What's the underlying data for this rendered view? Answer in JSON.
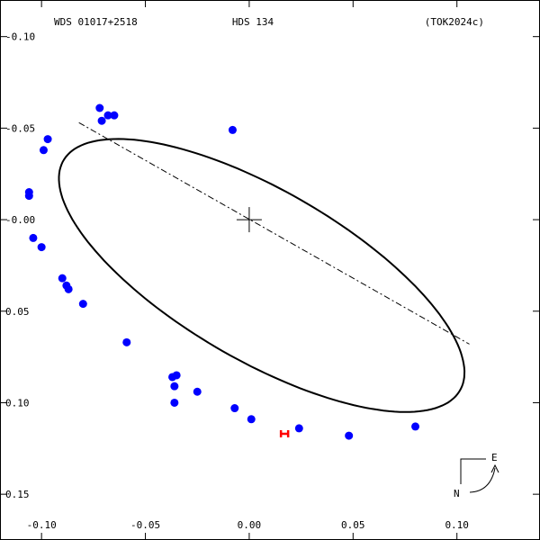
{
  "header": {
    "left": "WDS 01017+2518",
    "center": "HDS 134",
    "right": "(TOK2024c)"
  },
  "compass": {
    "east": "E",
    "north": "N"
  },
  "colors": {
    "frame": "#000000",
    "points": "#0000ff",
    "speckle_marker": "#ff0000",
    "orbit": "#000000"
  },
  "chart_data": {
    "type": "scatter",
    "xlim": [
      -0.12,
      0.14
    ],
    "ylim": [
      0.12,
      -0.175
    ],
    "x_ticks": [
      -0.1,
      -0.05,
      0.0,
      0.05,
      0.1
    ],
    "x_tick_labels": [
      "-0.10",
      "-0.05",
      "0.00",
      "0.05",
      "0.10"
    ],
    "y_ticks": [
      0.1,
      0.05,
      0.0,
      -0.05,
      -0.1,
      -0.15
    ],
    "y_tick_labels": [
      "-0.10",
      "-0.05",
      "-0.00",
      "0.05",
      "0.10",
      "0.15"
    ],
    "primary_star": [
      0.0,
      0.0
    ],
    "orbit_ellipse": {
      "center": [
        0.006,
        -0.0305
      ],
      "semi_major": 0.1144,
      "semi_minor": 0.0448,
      "rotation_deg": 34.5
    },
    "line_of_nodes": [
      [
        -0.082,
        0.053
      ],
      [
        0.106,
        -0.068
      ]
    ],
    "observations": [
      {
        "x": -0.072,
        "y": 0.061
      },
      {
        "x": -0.071,
        "y": 0.054
      },
      {
        "x": -0.068,
        "y": 0.057
      },
      {
        "x": -0.065,
        "y": 0.057
      },
      {
        "x": -0.097,
        "y": 0.044
      },
      {
        "x": -0.099,
        "y": 0.038
      },
      {
        "x": -0.106,
        "y": 0.015
      },
      {
        "x": -0.106,
        "y": 0.013
      },
      {
        "x": -0.104,
        "y": -0.01
      },
      {
        "x": -0.1,
        "y": -0.015
      },
      {
        "x": -0.09,
        "y": -0.032
      },
      {
        "x": -0.088,
        "y": -0.036
      },
      {
        "x": -0.087,
        "y": -0.038
      },
      {
        "x": -0.08,
        "y": -0.046
      },
      {
        "x": -0.059,
        "y": -0.067
      },
      {
        "x": -0.035,
        "y": -0.085
      },
      {
        "x": -0.037,
        "y": -0.086
      },
      {
        "x": -0.036,
        "y": -0.091
      },
      {
        "x": -0.036,
        "y": -0.1
      },
      {
        "x": -0.025,
        "y": -0.094
      },
      {
        "x": -0.007,
        "y": -0.103
      },
      {
        "x": 0.001,
        "y": -0.109
      },
      {
        "x": -0.008,
        "y": 0.049
      },
      {
        "x": 0.024,
        "y": -0.114
      },
      {
        "x": 0.048,
        "y": -0.118
      },
      {
        "x": 0.08,
        "y": -0.113
      }
    ],
    "speckle_measurements": [
      {
        "x": 0.017,
        "y": -0.117
      }
    ]
  }
}
